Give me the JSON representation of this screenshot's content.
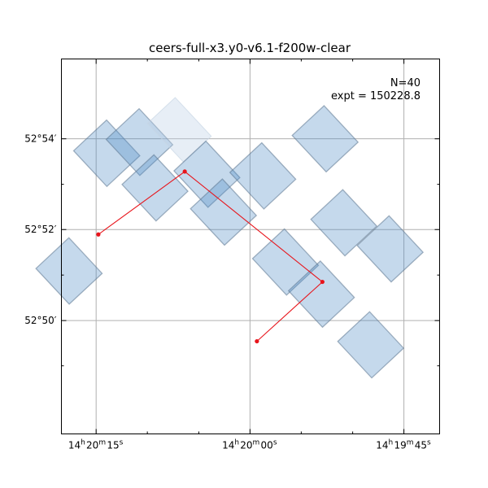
{
  "chart_data": {
    "type": "footprint-map",
    "title": "ceers-full-x3.y0-v6.1-f200w-clear",
    "annotations": [
      "N=40",
      "expt = 150228.8"
    ],
    "x_axis": {
      "unit": "RA",
      "lim": [
        215.0766,
        214.923
      ],
      "major_ticks": [
        {
          "value": 215.0625,
          "label": "14h20m15s",
          "h": "14",
          "m": "20",
          "s": "15"
        },
        {
          "value": 215.0,
          "label": "14h20m00s",
          "h": "14",
          "m": "20",
          "s": "00"
        },
        {
          "value": 214.9375,
          "label": "14h19m45s",
          "h": "14",
          "m": "19",
          "s": "45"
        }
      ],
      "minor_ticks": [
        215.0417,
        215.0208,
        214.9792,
        214.9583
      ]
    },
    "y_axis": {
      "unit": "Dec",
      "lim": [
        52.7917,
        52.9293
      ],
      "major_ticks": [
        {
          "value": 52.9,
          "label": "52°54′",
          "deg": "52",
          "min": "54"
        },
        {
          "value": 52.8667,
          "label": "52°52′",
          "deg": "52",
          "min": "52"
        },
        {
          "value": 52.8333,
          "label": "52°50′",
          "deg": "52",
          "min": "50"
        }
      ],
      "minor_ticks": [
        52.8833,
        52.85,
        52.8167
      ]
    },
    "grid": true,
    "footprints": [
      {
        "ra": 215.0582,
        "dec": 52.8947,
        "w": 0.0183,
        "h": 0.0179,
        "angle": -43
      },
      {
        "ra": 215.0449,
        "dec": 52.8988,
        "w": 0.0183,
        "h": 0.0181,
        "angle": -43
      },
      {
        "ra": 215.0287,
        "dec": 52.9033,
        "w": 0.0154,
        "h": 0.0194,
        "angle": -43,
        "faint": true
      },
      {
        "ra": 215.0386,
        "dec": 52.882,
        "w": 0.0177,
        "h": 0.0183,
        "angle": -43
      },
      {
        "ra": 215.0175,
        "dec": 52.887,
        "w": 0.0177,
        "h": 0.0183,
        "angle": -43
      },
      {
        "ra": 215.0108,
        "dec": 52.8731,
        "w": 0.0177,
        "h": 0.0183,
        "angle": -43
      },
      {
        "ra": 214.9948,
        "dec": 52.8864,
        "w": 0.0177,
        "h": 0.0183,
        "angle": -43
      },
      {
        "ra": 214.9695,
        "dec": 52.9,
        "w": 0.0177,
        "h": 0.0183,
        "angle": -43
      },
      {
        "ra": 214.9619,
        "dec": 52.8692,
        "w": 0.0177,
        "h": 0.0183,
        "angle": -43
      },
      {
        "ra": 214.9856,
        "dec": 52.8548,
        "w": 0.0177,
        "h": 0.0183,
        "angle": -43
      },
      {
        "ra": 214.9431,
        "dec": 52.8596,
        "w": 0.0177,
        "h": 0.0183,
        "angle": -43
      },
      {
        "ra": 214.971,
        "dec": 52.843,
        "w": 0.0177,
        "h": 0.0183,
        "angle": -43
      },
      {
        "ra": 214.951,
        "dec": 52.8244,
        "w": 0.0177,
        "h": 0.0183,
        "angle": -43
      },
      {
        "ra": 215.0735,
        "dec": 52.8515,
        "w": 0.0183,
        "h": 0.0179,
        "angle": -43
      }
    ],
    "pointing_path": [
      {
        "ra": 215.0616,
        "dec": 52.8649
      },
      {
        "ra": 215.0265,
        "dec": 52.888
      },
      {
        "ra": 214.9706,
        "dec": 52.8475
      },
      {
        "ra": 214.9972,
        "dec": 52.8257
      }
    ]
  }
}
